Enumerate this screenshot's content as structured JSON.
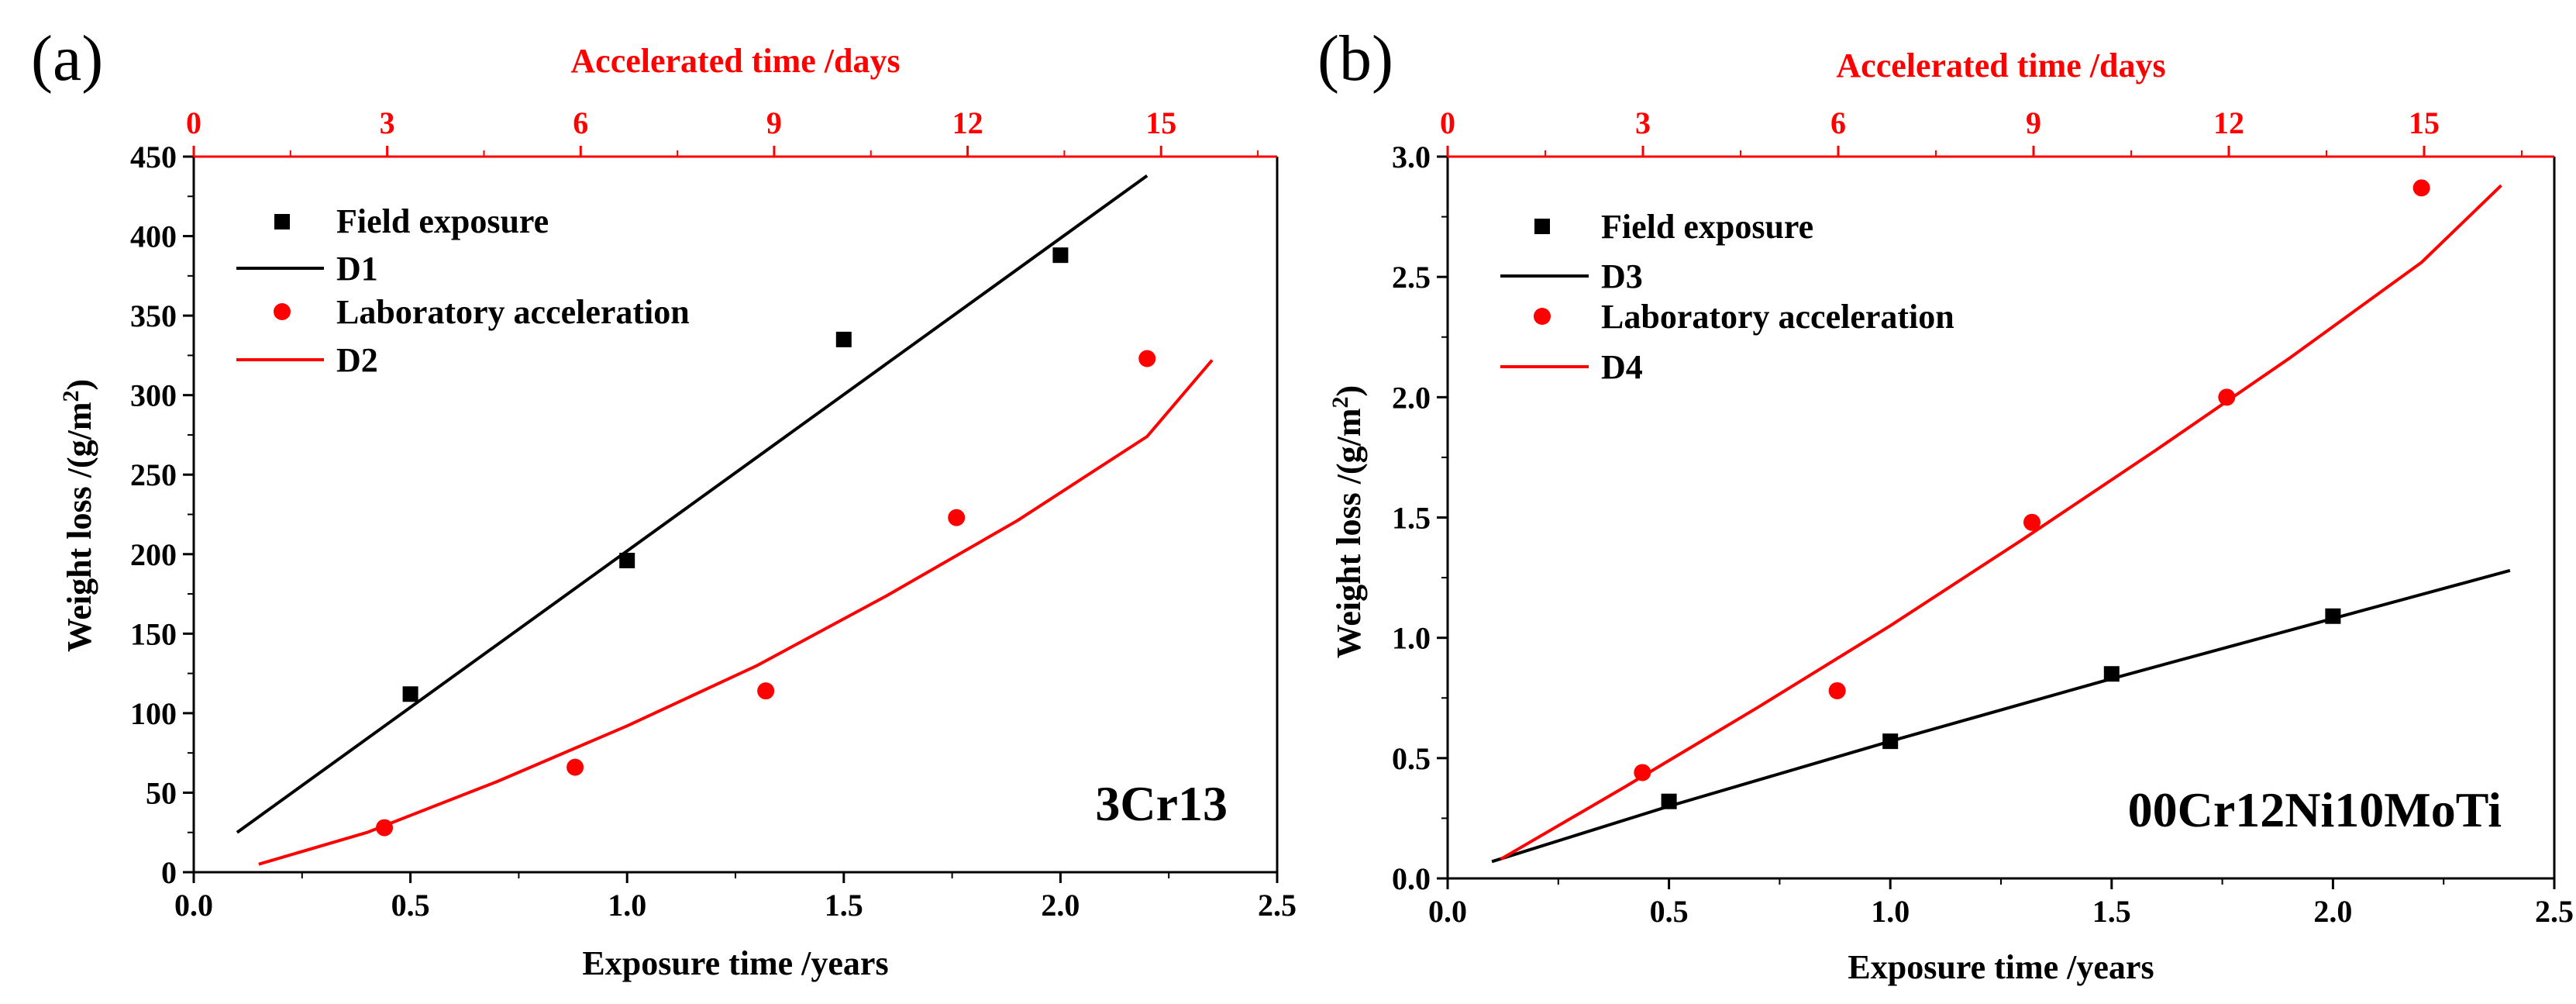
{
  "colors": {
    "black": "#000000",
    "red": "#ff0000"
  },
  "chart_data": [
    {
      "type": "scatter",
      "panel_label": "(a)",
      "annotation": "3Cr13",
      "xlabel": "Exposure time /years",
      "ylabel": "Weight loss /(g/m",
      "ylabel_sup": "2",
      "ylabel_close": ")",
      "x2label": "Accelerated  time /days",
      "xlim": [
        0.0,
        2.5
      ],
      "ylim": [
        0,
        450
      ],
      "x2lim": [
        0,
        16.8
      ],
      "xticks": [
        "0.0",
        "0.5",
        "1.0",
        "1.5",
        "2.0",
        "2.5"
      ],
      "yticks": [
        "0",
        "50",
        "100",
        "150",
        "200",
        "250",
        "300",
        "350",
        "400",
        "450"
      ],
      "x2ticks": [
        "0",
        "3",
        "6",
        "9",
        "12",
        "15"
      ],
      "legend": [
        "Field exposure",
        "D1",
        "Laboratory acceleration",
        "D2"
      ],
      "series": [
        {
          "name": "Field exposure",
          "kind": "points",
          "marker": "square",
          "color": "#000000",
          "x": [
            0.5,
            1.0,
            1.5,
            2.0
          ],
          "y": [
            112,
            196,
            335,
            388
          ]
        },
        {
          "name": "D1",
          "kind": "line",
          "color": "#000000",
          "x": [
            0.1,
            2.2
          ],
          "y": [
            25,
            438
          ]
        },
        {
          "name": "Laboratory acceleration",
          "kind": "points",
          "marker": "circle",
          "color": "#ff0000",
          "x": [
            0.44,
            0.88,
            1.32,
            1.76,
            2.2
          ],
          "y": [
            28,
            66,
            114,
            223,
            323
          ]
        },
        {
          "name": "D2",
          "kind": "line",
          "color": "#ff0000",
          "x": [
            0.15,
            0.4,
            0.7,
            1.0,
            1.3,
            1.6,
            1.9,
            2.2,
            2.35
          ],
          "y": [
            5,
            25,
            57,
            92,
            130,
            174,
            221,
            274,
            322
          ]
        }
      ]
    },
    {
      "type": "scatter",
      "panel_label": "(b)",
      "annotation": "00Cr12Ni10MoTi",
      "xlabel": "Exposure time /years",
      "ylabel": "Weight loss /(g/m",
      "ylabel_sup": "2",
      "ylabel_close": ")",
      "x2label": "Accelerated  time /days",
      "xlim": [
        0.0,
        2.5
      ],
      "ylim": [
        0.0,
        3.0
      ],
      "x2lim": [
        0,
        17.0
      ],
      "xticks": [
        "0.0",
        "0.5",
        "1.0",
        "1.5",
        "2.0",
        "2.5"
      ],
      "yticks": [
        "0.0",
        "0.5",
        "1.0",
        "1.5",
        "2.0",
        "2.5",
        "3.0"
      ],
      "x2ticks": [
        "0",
        "3",
        "6",
        "9",
        "12",
        "15"
      ],
      "legend": [
        "Field exposure",
        "D3",
        "Laboratory acceleration",
        "D4"
      ],
      "series": [
        {
          "name": "Field exposure",
          "kind": "points",
          "marker": "square",
          "color": "#000000",
          "x": [
            0.5,
            1.0,
            1.5,
            2.0
          ],
          "y": [
            0.32,
            0.57,
            0.85,
            1.09
          ]
        },
        {
          "name": "D3",
          "kind": "line",
          "color": "#000000",
          "x": [
            0.1,
            0.5,
            1.0,
            1.5,
            2.0,
            2.4
          ],
          "y": [
            0.07,
            0.3,
            0.57,
            0.83,
            1.08,
            1.28
          ]
        },
        {
          "name": "Laboratory acceleration",
          "kind": "points",
          "marker": "circle",
          "color": "#ff0000",
          "x": [
            0.44,
            0.88,
            1.32,
            1.76,
            2.2
          ],
          "y": [
            0.44,
            0.78,
            1.48,
            2.0,
            2.87
          ]
        },
        {
          "name": "D4",
          "kind": "line",
          "color": "#ff0000",
          "x": [
            0.12,
            0.4,
            0.7,
            1.0,
            1.3,
            1.6,
            1.9,
            2.2,
            2.38
          ],
          "y": [
            0.08,
            0.38,
            0.71,
            1.05,
            1.41,
            1.78,
            2.16,
            2.56,
            2.88
          ]
        }
      ]
    }
  ]
}
